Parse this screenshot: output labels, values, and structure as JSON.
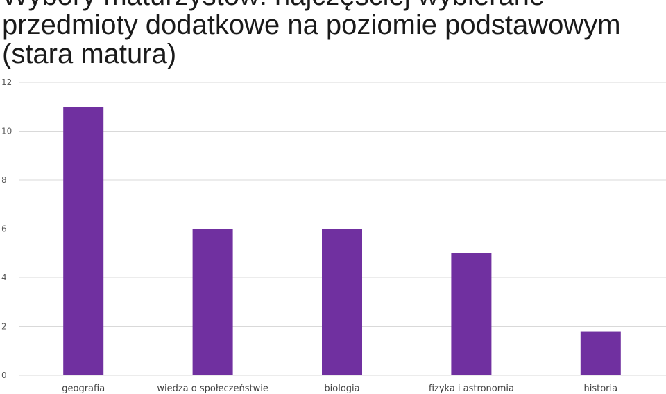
{
  "chart_data": {
    "type": "bar",
    "title": "Wybory maturzystów: najczęściej wybierane przedmioty dodatkowe na poziomie podstawowym (stara matura)",
    "categories": [
      "geografia",
      "wiedza o społeczeństwie",
      "biologia",
      "fizyka i astronomia",
      "historia"
    ],
    "values": [
      11,
      6,
      6,
      5,
      1.8
    ],
    "ylim": [
      0,
      12
    ],
    "yticks": [
      0,
      2,
      4,
      6,
      8,
      10,
      12
    ],
    "grid": true,
    "colors": {
      "bar": "#7030a0",
      "grid": "#d9d9d9"
    }
  }
}
